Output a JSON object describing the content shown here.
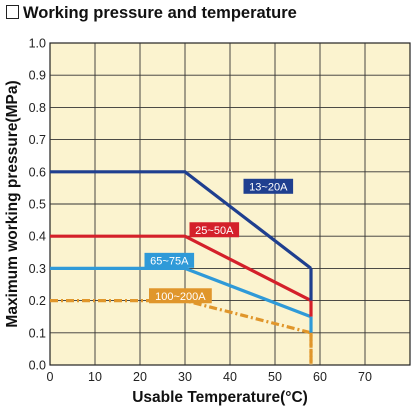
{
  "title": "Working pressure and temperature",
  "chart_data": {
    "type": "line",
    "xlabel": "Usable Temperature(°C)",
    "ylabel": "Maximum working pressure(MPa)",
    "xlim": [
      0,
      80
    ],
    "ylim": [
      0,
      1.0
    ],
    "x_ticks": [
      "0",
      "10",
      "20",
      "30",
      "40",
      "50",
      "60",
      "70"
    ],
    "y_ticks": [
      "0.0",
      "0.1",
      "0.2",
      "0.3",
      "0.4",
      "0.5",
      "0.6",
      "0.7",
      "0.8",
      "0.9",
      "1.0"
    ],
    "grid": true,
    "background": "#fbf3cf",
    "series": [
      {
        "name": "13~20A",
        "color": "#1f3f8f",
        "dashed": false,
        "points": [
          [
            0,
            0.6
          ],
          [
            30,
            0.6
          ],
          [
            58,
            0.3
          ],
          [
            58,
            0.3
          ]
        ],
        "label_at": [
          43,
          0.555
        ]
      },
      {
        "name": "25~50A",
        "color": "#d4202a",
        "dashed": false,
        "points": [
          [
            0,
            0.4
          ],
          [
            30,
            0.4
          ],
          [
            58,
            0.2
          ]
        ],
        "label_at": [
          31,
          0.42
        ]
      },
      {
        "name": "65~75A",
        "color": "#2f9ad8",
        "dashed": false,
        "points": [
          [
            0,
            0.3
          ],
          [
            30,
            0.3
          ],
          [
            58,
            0.15
          ]
        ],
        "label_at": [
          21,
          0.325
        ]
      },
      {
        "name": "100~200A",
        "color": "#e0962b",
        "dashed": true,
        "points": [
          [
            0,
            0.2
          ],
          [
            30,
            0.2
          ],
          [
            58,
            0.1
          ],
          [
            58,
            0.0
          ]
        ],
        "label_at": [
          22,
          0.215
        ]
      }
    ],
    "end_drop": {
      "x": 58,
      "from": 0.3,
      "to": 0.0
    }
  }
}
